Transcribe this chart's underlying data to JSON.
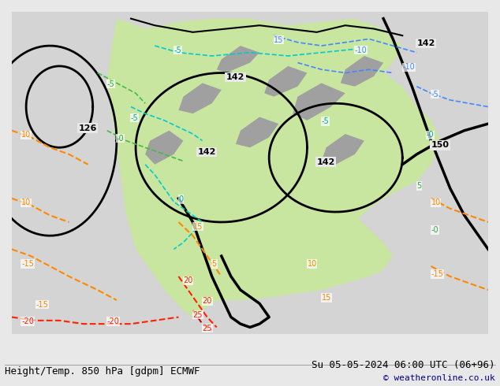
{
  "title_left": "Height/Temp. 850 hPa [gdpm] ECMWF",
  "title_right": "Su 05-05-2024 06:00 UTC (06+96)",
  "copyright": "© weatheronline.co.uk",
  "background_color": "#e8e8e8",
  "map_background": "#d4d4d4",
  "land_green": "#c8e6a0",
  "figsize": [
    6.34,
    4.9
  ],
  "dpi": 100,
  "bottom_text_color_left": "#000000",
  "bottom_text_color_right": "#000000",
  "copyright_color": "#00008B",
  "title_fontsize": 9,
  "copyright_fontsize": 8
}
